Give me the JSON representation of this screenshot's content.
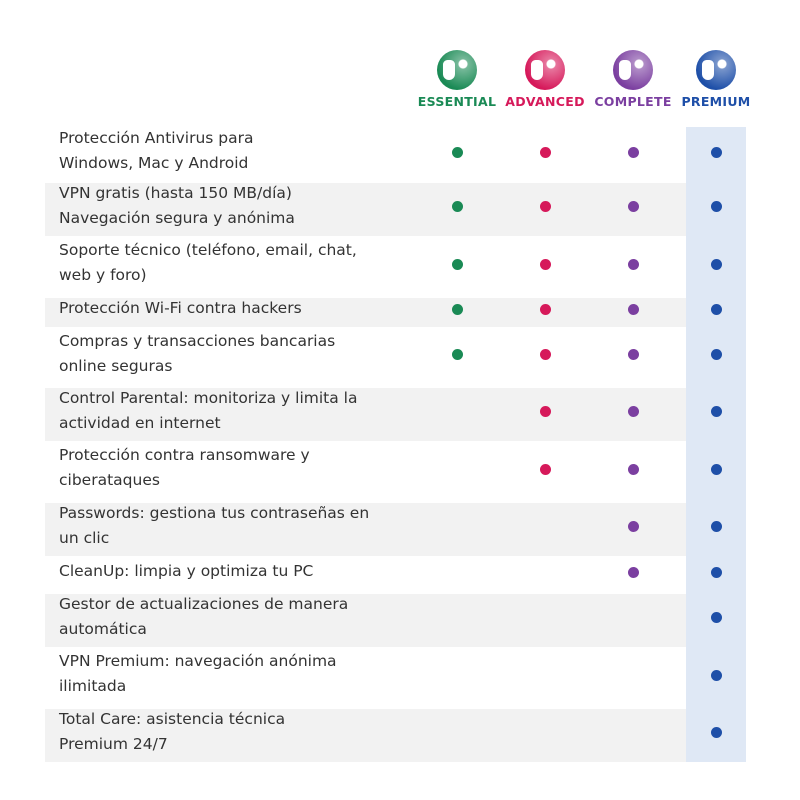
{
  "plans": [
    {
      "name": "ESSENTIAL",
      "color": "#1a8a55"
    },
    {
      "name": "ADVANCED",
      "color": "#d6195a"
    },
    {
      "name": "COMPLETE",
      "color": "#7b3fa0"
    },
    {
      "name": "PREMIUM",
      "color": "#1e4fa8"
    }
  ],
  "rows": [
    {
      "lines": [
        "Protección Antivirus para",
        "Windows, Mac y Android"
      ],
      "included": [
        true,
        true,
        true,
        true
      ]
    },
    {
      "lines": [
        "VPN gratis (hasta 150 MB/día)",
        "Navegación segura y anónima"
      ],
      "included": [
        true,
        true,
        true,
        true
      ]
    },
    {
      "lines": [
        "Soporte técnico (teléfono, email, chat,",
        "web y foro)"
      ],
      "included": [
        true,
        true,
        true,
        true
      ]
    },
    {
      "lines": [
        "Protección Wi-Fi contra hackers"
      ],
      "included": [
        true,
        true,
        true,
        true
      ]
    },
    {
      "lines": [
        "Compras y transacciones bancarias",
        "online seguras"
      ],
      "included": [
        true,
        true,
        true,
        true
      ]
    },
    {
      "lines": [
        "Control Parental: monitoriza y limita la",
        "actividad en internet"
      ],
      "included": [
        false,
        true,
        true,
        true
      ]
    },
    {
      "lines": [
        "Protección contra ransomware y",
        "ciberataques"
      ],
      "included": [
        false,
        true,
        true,
        true
      ]
    },
    {
      "lines": [
        "Passwords: gestiona tus contraseñas en",
        "un clic"
      ],
      "included": [
        false,
        false,
        true,
        true
      ]
    },
    {
      "lines": [
        "CleanUp: limpia y optimiza tu PC"
      ],
      "included": [
        false,
        false,
        true,
        true
      ]
    },
    {
      "lines": [
        "Gestor de actualizaciones de manera",
        "automática"
      ],
      "included": [
        false,
        false,
        false,
        true
      ]
    },
    {
      "lines": [
        "VPN Premium: navegación anónima",
        "ilimitada"
      ],
      "included": [
        false,
        false,
        false,
        true
      ]
    },
    {
      "lines": [
        "Total Care: asistencia técnica",
        "Premium 24/7"
      ],
      "included": [
        false,
        false,
        false,
        true
      ]
    }
  ]
}
